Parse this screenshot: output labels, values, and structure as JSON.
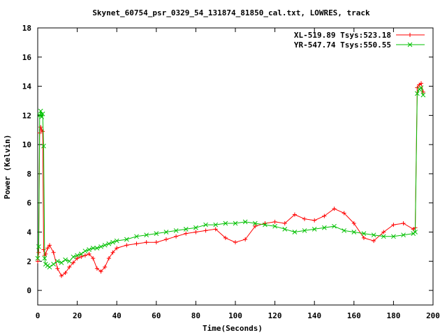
{
  "chart_data": {
    "type": "line",
    "title": "Skynet_60754_psr_0329_54_131874_81850_cal.txt, LOWRES, track",
    "xlabel": "Time(Seconds)",
    "ylabel": "Power (Kelvin)",
    "xlim": [
      0,
      200
    ],
    "ylim": [
      -1,
      18
    ],
    "xticks": [
      0,
      20,
      40,
      60,
      80,
      100,
      120,
      140,
      160,
      180,
      200
    ],
    "yticks": [
      0,
      2,
      4,
      6,
      8,
      10,
      12,
      14,
      16,
      18
    ],
    "grid": false,
    "legend_position": "top-right",
    "series": [
      {
        "name": "XL-519.89 Tsys:523.18",
        "color": "#ff0000",
        "marker": "plus",
        "x": [
          0,
          0.5,
          1,
          1.5,
          2,
          2.5,
          3,
          3.5,
          4,
          5,
          6,
          8,
          10,
          12,
          14,
          16,
          18,
          20,
          22,
          24,
          26,
          28,
          30,
          32,
          34,
          36,
          38,
          40,
          45,
          50,
          55,
          60,
          65,
          70,
          75,
          80,
          85,
          90,
          95,
          100,
          105,
          110,
          115,
          120,
          125,
          130,
          135,
          140,
          145,
          150,
          155,
          160,
          165,
          170,
          175,
          180,
          185,
          190,
          191,
          192,
          193,
          194,
          195
        ],
        "y": [
          2.0,
          2.6,
          10.8,
          11.2,
          11.0,
          10.9,
          2.8,
          2.4,
          2.5,
          2.9,
          3.1,
          2.6,
          1.5,
          1.0,
          1.2,
          1.6,
          1.9,
          2.2,
          2.3,
          2.4,
          2.5,
          2.2,
          1.5,
          1.3,
          1.6,
          2.2,
          2.6,
          2.9,
          3.1,
          3.2,
          3.3,
          3.3,
          3.5,
          3.7,
          3.9,
          4.0,
          4.1,
          4.2,
          3.6,
          3.3,
          3.5,
          4.4,
          4.6,
          4.7,
          4.6,
          5.2,
          4.9,
          4.8,
          5.1,
          5.6,
          5.3,
          4.6,
          3.6,
          3.4,
          4.0,
          4.5,
          4.6,
          4.2,
          4.3,
          13.9,
          14.1,
          14.2,
          13.6
        ]
      },
      {
        "name": "YR-547.74 Tsys:550.55",
        "color": "#00c000",
        "marker": "cross",
        "x": [
          0,
          0.5,
          1,
          1.5,
          2,
          2.5,
          3,
          3.5,
          4,
          5,
          6,
          8,
          10,
          12,
          14,
          16,
          18,
          20,
          22,
          24,
          26,
          28,
          30,
          32,
          34,
          36,
          38,
          40,
          45,
          50,
          55,
          60,
          65,
          70,
          75,
          80,
          85,
          90,
          95,
          100,
          105,
          110,
          115,
          120,
          125,
          130,
          135,
          140,
          145,
          150,
          155,
          160,
          165,
          170,
          175,
          180,
          185,
          190,
          191,
          192,
          193,
          194,
          195
        ],
        "y": [
          2.2,
          3.0,
          12.0,
          12.3,
          11.9,
          12.1,
          9.9,
          2.2,
          1.8,
          1.7,
          1.6,
          1.8,
          2.0,
          1.9,
          2.1,
          2.0,
          2.3,
          2.4,
          2.5,
          2.7,
          2.8,
          2.9,
          2.9,
          3.0,
          3.1,
          3.2,
          3.3,
          3.4,
          3.5,
          3.7,
          3.8,
          3.9,
          4.0,
          4.1,
          4.2,
          4.3,
          4.5,
          4.5,
          4.6,
          4.6,
          4.7,
          4.6,
          4.5,
          4.4,
          4.2,
          4.0,
          4.1,
          4.2,
          4.3,
          4.4,
          4.1,
          4.0,
          3.9,
          3.8,
          3.7,
          3.7,
          3.8,
          3.9,
          4.0,
          13.5,
          13.8,
          13.9,
          13.4
        ]
      }
    ]
  }
}
